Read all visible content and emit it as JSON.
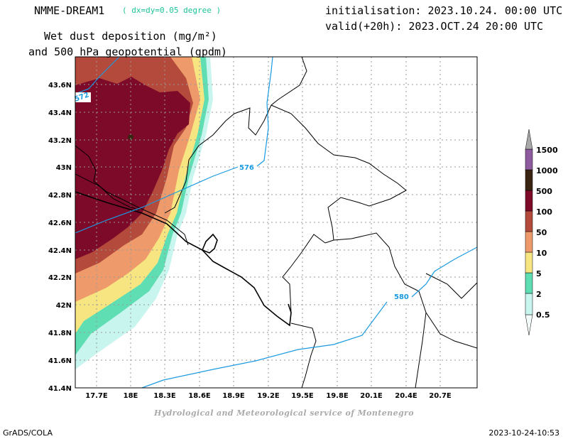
{
  "header": {
    "model_name": "NMME-DREAM1",
    "model_resolution": "( dx=dy=0.05 degree )",
    "initialisation": "initialisation: 2023.10.24. 00:00 UTC",
    "valid": "valid(+20h): 2023.OCT.24 20:00 UTC",
    "title_line1": "Wet dust deposition (mg/m²)",
    "title_line2": "and 500 hPa geopotential (gpdm)"
  },
  "map": {
    "lon_ticks": [
      "17.7E",
      "18E",
      "18.3E",
      "18.6E",
      "18.9E",
      "19.2E",
      "19.5E",
      "19.8E",
      "20.1E",
      "20.4E",
      "20.7E"
    ],
    "lat_ticks": [
      "41.4N",
      "41.6N",
      "41.8N",
      "42N",
      "42.2N",
      "42.4N",
      "42.6N",
      "42.8N",
      "43N",
      "43.2N",
      "43.4N",
      "43.6N"
    ],
    "contour_labels": [
      "572",
      "576",
      "580"
    ],
    "contour_color": "#1a9ae0"
  },
  "colorbar": {
    "levels": [
      "0.5",
      "2",
      "5",
      "10",
      "50",
      "100",
      "500",
      "1000",
      "1500"
    ],
    "colors": [
      "#c8f5ee",
      "#5fdeb4",
      "#f7e582",
      "#ee9a6a",
      "#b44a3c",
      "#7e0a2a",
      "#3a2412",
      "#8e5c9e",
      "#a8a8a8"
    ]
  },
  "credit": "Hydrological and Meteorological service of Montenegro",
  "footer": {
    "left": "GrADS/COLA",
    "right": "2023-10-24-10:53"
  }
}
